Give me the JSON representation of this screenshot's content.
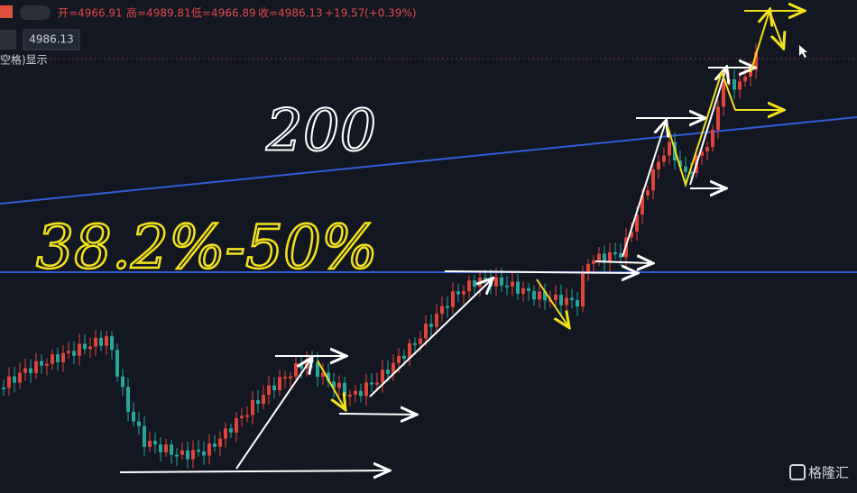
{
  "header": {
    "open": "开=4966.91",
    "high": "高=4989.81",
    "low": "低=4966.89",
    "close": "收=4986.13",
    "change": "+19.57",
    "change_pct": "(+0.39%)"
  },
  "price_box": "4986.13",
  "hint": "空格)显示",
  "annotations": {
    "level": "200",
    "range": "38.2%-50%"
  },
  "watermark": "格隆汇"
}
